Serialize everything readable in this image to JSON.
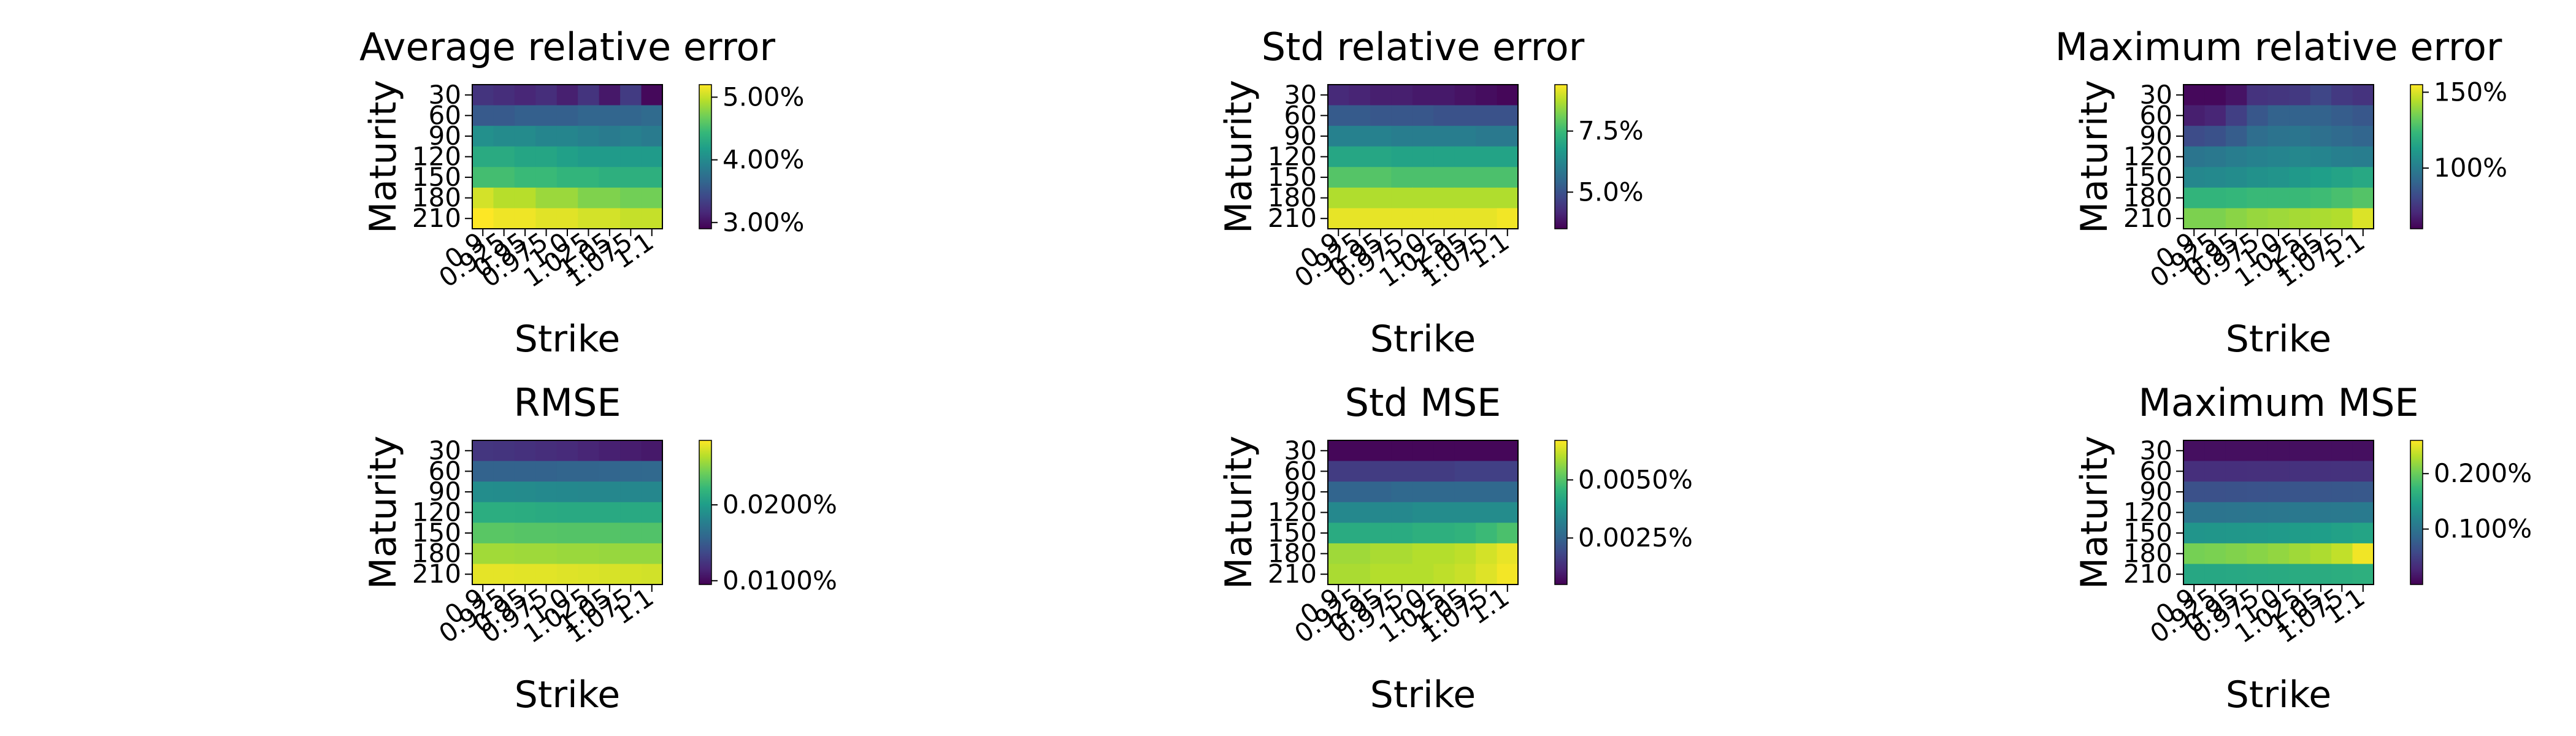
{
  "figure": {
    "colormap": "viridis",
    "colormap_stops": [
      "#440154",
      "#482878",
      "#3e4989",
      "#31688e",
      "#26828e",
      "#1f9e89",
      "#35b779",
      "#6ece58",
      "#b5de2b",
      "#fde725"
    ]
  },
  "chart_data": [
    {
      "type": "heatmap",
      "title": "Average relative error",
      "xlabel": "Strike",
      "ylabel": "Maturity",
      "x_categories": [
        "0.9",
        "0.925",
        "0.95",
        "0.975",
        "1.0",
        "1.025",
        "1.05",
        "1.075",
        "1.1"
      ],
      "y_categories": [
        "30",
        "60",
        "90",
        "120",
        "150",
        "180",
        "210"
      ],
      "colorbar": {
        "range": [
          2.9,
          5.2
        ],
        "ticks": [
          3.0,
          4.0,
          5.0
        ],
        "tick_labels": [
          "3.00%",
          "4.00%",
          "5.00%"
        ]
      },
      "z": [
        [
          3.25,
          3.2,
          3.15,
          3.2,
          3.1,
          3.25,
          3.05,
          3.3,
          2.95
        ],
        [
          3.55,
          3.55,
          3.6,
          3.6,
          3.6,
          3.65,
          3.65,
          3.65,
          3.7
        ],
        [
          4.05,
          4.0,
          4.0,
          3.95,
          3.95,
          3.9,
          3.85,
          3.9,
          3.85
        ],
        [
          4.3,
          4.3,
          4.25,
          4.25,
          4.2,
          4.15,
          4.15,
          4.15,
          4.15
        ],
        [
          4.5,
          4.5,
          4.45,
          4.45,
          4.4,
          4.4,
          4.35,
          4.35,
          4.35
        ],
        [
          5.05,
          4.95,
          4.95,
          4.85,
          4.85,
          4.75,
          4.75,
          4.7,
          4.7
        ],
        [
          5.2,
          5.15,
          5.15,
          5.1,
          5.1,
          5.05,
          5.05,
          5.0,
          5.0
        ]
      ]
    },
    {
      "type": "heatmap",
      "title": "Std relative error",
      "xlabel": "Strike",
      "ylabel": "Maturity",
      "x_categories": [
        "0.9",
        "0.925",
        "0.95",
        "0.975",
        "1.0",
        "1.025",
        "1.05",
        "1.075",
        "1.1"
      ],
      "y_categories": [
        "30",
        "60",
        "90",
        "120",
        "150",
        "180",
        "210"
      ],
      "colorbar": {
        "range": [
          3.5,
          9.4
        ],
        "ticks": [
          5.0,
          7.5
        ],
        "tick_labels": [
          "5.0%",
          "7.5%"
        ]
      },
      "z": [
        [
          4.2,
          4.1,
          4.0,
          4.0,
          3.9,
          3.9,
          3.8,
          3.7,
          3.6
        ],
        [
          5.2,
          5.2,
          5.1,
          5.1,
          5.1,
          5.0,
          5.0,
          5.0,
          5.0
        ],
        [
          6.1,
          6.1,
          6.1,
          6.0,
          6.0,
          6.0,
          6.0,
          5.9,
          5.9
        ],
        [
          7.0,
          7.0,
          7.0,
          6.9,
          6.9,
          6.9,
          6.9,
          6.9,
          6.9
        ],
        [
          7.8,
          7.8,
          7.8,
          7.7,
          7.7,
          7.7,
          7.7,
          7.7,
          7.7
        ],
        [
          8.7,
          8.7,
          8.7,
          8.7,
          8.7,
          8.7,
          8.7,
          8.7,
          8.7
        ],
        [
          9.2,
          9.2,
          9.2,
          9.2,
          9.2,
          9.2,
          9.2,
          9.2,
          9.3
        ]
      ]
    },
    {
      "type": "heatmap",
      "title": "Maximum relative error",
      "xlabel": "Strike",
      "ylabel": "Maturity",
      "x_categories": [
        "0.9",
        "0.925",
        "0.95",
        "0.975",
        "1.0",
        "1.025",
        "1.05",
        "1.075",
        "1.1"
      ],
      "y_categories": [
        "30",
        "60",
        "90",
        "120",
        "150",
        "180",
        "210"
      ],
      "colorbar": {
        "range": [
          60,
          155
        ],
        "ticks": [
          100,
          150
        ],
        "tick_labels": [
          "100%",
          "150%"
        ]
      },
      "z": [
        [
          62,
          62,
          65,
          74,
          75,
          76,
          80,
          76,
          74
        ],
        [
          68,
          70,
          78,
          86,
          90,
          90,
          90,
          88,
          86
        ],
        [
          82,
          84,
          88,
          94,
          96,
          97,
          95,
          93,
          91
        ],
        [
          97,
          98,
          100,
          102,
          103,
          104,
          103,
          101,
          100
        ],
        [
          104,
          105,
          106,
          108,
          109,
          111,
          113,
          115,
          117
        ],
        [
          122,
          122,
          123,
          124,
          124,
          124,
          125,
          127,
          129
        ],
        [
          136,
          136,
          138,
          140,
          141,
          142,
          143,
          144,
          150
        ]
      ]
    },
    {
      "type": "heatmap",
      "title": "RMSE",
      "xlabel": "Strike",
      "ylabel": "Maturity",
      "x_categories": [
        "0.9",
        "0.925",
        "0.95",
        "0.975",
        "1.0",
        "1.025",
        "1.05",
        "1.075",
        "1.1"
      ],
      "y_categories": [
        "30",
        "60",
        "90",
        "120",
        "150",
        "180",
        "210"
      ],
      "colorbar": {
        "range": [
          0.0095,
          0.0285
        ],
        "ticks": [
          0.01,
          0.02
        ],
        "tick_labels": [
          "0.0100%",
          "0.0200%"
        ]
      },
      "z": [
        [
          0.0125,
          0.0124,
          0.0122,
          0.012,
          0.0118,
          0.0115,
          0.0112,
          0.011,
          0.0108
        ],
        [
          0.0155,
          0.0155,
          0.0155,
          0.0155,
          0.0156,
          0.0156,
          0.0157,
          0.0158,
          0.0159
        ],
        [
          0.0188,
          0.0187,
          0.0186,
          0.0185,
          0.0184,
          0.0183,
          0.0183,
          0.0183,
          0.0183
        ],
        [
          0.0213,
          0.0213,
          0.0212,
          0.0211,
          0.021,
          0.021,
          0.021,
          0.021,
          0.021
        ],
        [
          0.0235,
          0.0235,
          0.0234,
          0.0234,
          0.0233,
          0.0233,
          0.0233,
          0.0232,
          0.0232
        ],
        [
          0.0258,
          0.0258,
          0.0257,
          0.0257,
          0.0256,
          0.0256,
          0.0255,
          0.0254,
          0.0254
        ],
        [
          0.0278,
          0.0278,
          0.0277,
          0.0277,
          0.0276,
          0.0275,
          0.0274,
          0.0273,
          0.0272
        ]
      ]
    },
    {
      "type": "heatmap",
      "title": "Std MSE",
      "xlabel": "Strike",
      "ylabel": "Maturity",
      "x_categories": [
        "0.9",
        "0.925",
        "0.95",
        "0.975",
        "1.0",
        "1.025",
        "1.05",
        "1.075",
        "1.1"
      ],
      "y_categories": [
        "30",
        "60",
        "90",
        "120",
        "150",
        "180",
        "210"
      ],
      "colorbar": {
        "range": [
          0.0005,
          0.0067
        ],
        "ticks": [
          0.0025,
          0.005
        ],
        "tick_labels": [
          "0.0025%",
          "0.0050%"
        ]
      },
      "z": [
        [
          0.0006,
          0.0006,
          0.0006,
          0.0006,
          0.0006,
          0.0006,
          0.0006,
          0.0006,
          0.0006
        ],
        [
          0.0016,
          0.0016,
          0.0016,
          0.0016,
          0.0016,
          0.0016,
          0.0017,
          0.0017,
          0.0017
        ],
        [
          0.0025,
          0.0025,
          0.0025,
          0.0026,
          0.0026,
          0.0026,
          0.0026,
          0.0026,
          0.0026
        ],
        [
          0.0034,
          0.0034,
          0.0034,
          0.0034,
          0.0035,
          0.0035,
          0.0035,
          0.0035,
          0.0035
        ],
        [
          0.0043,
          0.0043,
          0.0043,
          0.0043,
          0.0044,
          0.0044,
          0.0045,
          0.0047,
          0.0049
        ],
        [
          0.0058,
          0.0058,
          0.0059,
          0.0059,
          0.006,
          0.006,
          0.0061,
          0.0063,
          0.0065
        ],
        [
          0.0059,
          0.0059,
          0.006,
          0.006,
          0.006,
          0.0061,
          0.0062,
          0.0064,
          0.0066
        ]
      ]
    },
    {
      "type": "heatmap",
      "title": "Maximum MSE",
      "xlabel": "Strike",
      "ylabel": "Maturity",
      "x_categories": [
        "0.9",
        "0.925",
        "0.95",
        "0.975",
        "1.0",
        "1.025",
        "1.05",
        "1.075",
        "1.1"
      ],
      "y_categories": [
        "30",
        "60",
        "90",
        "120",
        "150",
        "180",
        "210"
      ],
      "colorbar": {
        "range": [
          0.0,
          0.26
        ],
        "ticks": [
          0.1,
          0.2
        ],
        "tick_labels": [
          "0.100%",
          "0.200%"
        ]
      },
      "z": [
        [
          0.01,
          0.01,
          0.01,
          0.01,
          0.01,
          0.01,
          0.01,
          0.01,
          0.01
        ],
        [
          0.035,
          0.035,
          0.035,
          0.036,
          0.036,
          0.037,
          0.037,
          0.038,
          0.038
        ],
        [
          0.065,
          0.065,
          0.066,
          0.067,
          0.068,
          0.069,
          0.07,
          0.071,
          0.072
        ],
        [
          0.1,
          0.1,
          0.101,
          0.102,
          0.103,
          0.104,
          0.105,
          0.106,
          0.107
        ],
        [
          0.135,
          0.136,
          0.137,
          0.138,
          0.14,
          0.142,
          0.145,
          0.148,
          0.151
        ],
        [
          0.205,
          0.207,
          0.21,
          0.213,
          0.217,
          0.222,
          0.228,
          0.236,
          0.255
        ],
        [
          0.155,
          0.155,
          0.156,
          0.157,
          0.158,
          0.159,
          0.16,
          0.162,
          0.164
        ]
      ]
    }
  ]
}
